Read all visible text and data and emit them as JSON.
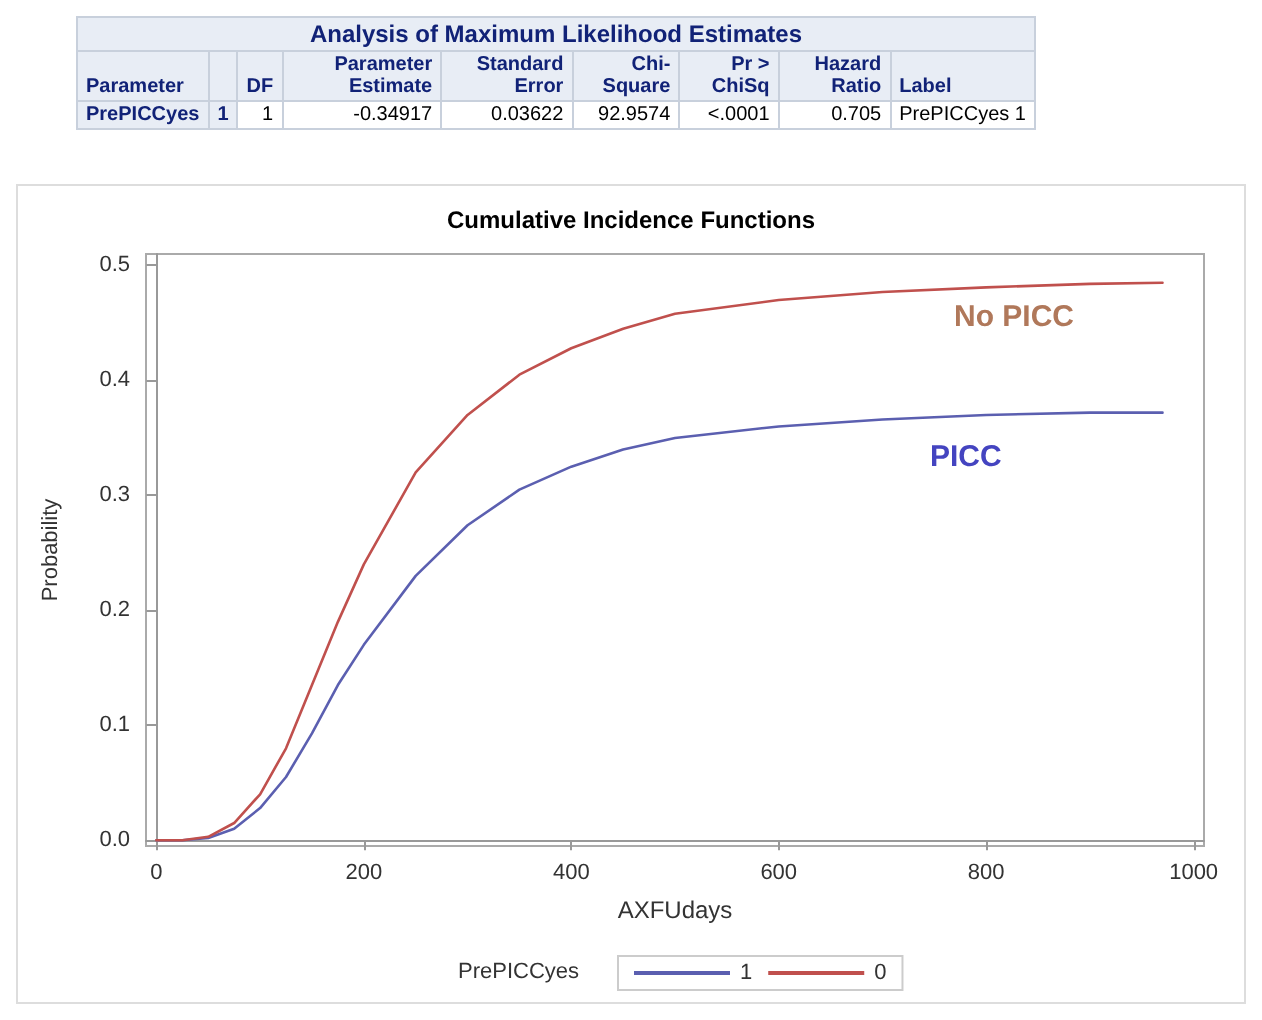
{
  "chart_data": [
    {
      "type": "other",
      "title": "Analysis of Maximum Likelihood Estimates",
      "categories": [
        "Parameter",
        null,
        "DF",
        "Parameter Estimate",
        "Standard Error",
        "Chi-Square",
        "Pr > ChiSq",
        "Hazard Ratio",
        "Label"
      ],
      "cell_labels": [
        [
          "PrePICCyes",
          "1",
          "1",
          "-0.34917",
          "0.03622",
          "92.9574",
          "<.0001",
          "0.705",
          "PrePICCyes 1"
        ]
      ]
    },
    {
      "type": "line",
      "title": "Cumulative Incidence Functions",
      "xlabel": "AXFUdays",
      "ylabel": "Probability",
      "legend_title": "PrePICCyes",
      "x": [
        0,
        25,
        50,
        75,
        100,
        125,
        150,
        175,
        200,
        250,
        300,
        350,
        400,
        450,
        500,
        600,
        700,
        800,
        900,
        970
      ],
      "series": [
        {
          "name": "1",
          "color": "#5b5fb0",
          "values": [
            0,
            0,
            0.002,
            0.01,
            0.028,
            0.055,
            0.093,
            0.135,
            0.17,
            0.23,
            0.274,
            0.305,
            0.325,
            0.34,
            0.35,
            0.36,
            0.366,
            0.37,
            0.372,
            0.372
          ]
        },
        {
          "name": "0",
          "color": "#c0504d",
          "values": [
            0,
            0,
            0.003,
            0.015,
            0.04,
            0.08,
            0.135,
            0.19,
            0.24,
            0.32,
            0.37,
            0.405,
            0.428,
            0.445,
            0.458,
            0.47,
            0.477,
            0.481,
            0.484,
            0.485
          ]
        }
      ],
      "annotations": [
        "No PICC",
        "PICC"
      ],
      "xlim": [
        -10,
        1010
      ],
      "xticks": [
        0,
        200,
        400,
        600,
        800,
        1000
      ],
      "ylim": [
        -0.005,
        0.51
      ],
      "yticks": [
        {
          "value": 0,
          "label": "0.0"
        },
        0.1,
        0.2,
        0.3,
        0.4,
        0.5
      ],
      "legend": "bottom",
      "marker": "none",
      "line_style": "solid"
    }
  ]
}
